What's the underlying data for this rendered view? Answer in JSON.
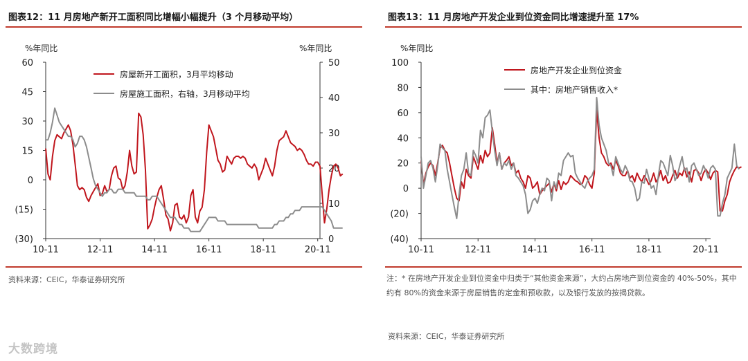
{
  "left": {
    "title": "图表12：11 月房地产新开工面积同比增幅小幅提升（3 个月移动平均）",
    "source": "资料来源：CEIC，华泰证券研究所",
    "chart_data": {
      "type": "line",
      "left_unit": "%年同比",
      "right_unit": "%年同比",
      "y_left_ticks": [
        "60",
        "45",
        "30",
        "15",
        "0",
        "(15)",
        "(30)"
      ],
      "y_left_values": [
        60,
        45,
        30,
        15,
        0,
        -15,
        -30
      ],
      "ylim_left": [
        -30,
        60
      ],
      "y_right_ticks": [
        "50",
        "40",
        "30",
        "20",
        "10",
        "0"
      ],
      "y_right_values": [
        50,
        40,
        30,
        20,
        10,
        0
      ],
      "ylim_right": [
        0,
        50
      ],
      "x_ticks": [
        "10-11",
        "12-11",
        "14-11",
        "16-11",
        "18-11",
        "20-11"
      ],
      "x_tick_positions": [
        0,
        24,
        48,
        72,
        96,
        120
      ],
      "xlim": [
        0,
        121
      ],
      "series": [
        {
          "name": "房屋新开工面积，3月平均移动",
          "color": "#c0161d",
          "axis": "left",
          "values": [
            16,
            3,
            0,
            12,
            20,
            23,
            22,
            21,
            24,
            26,
            28,
            25,
            18,
            8,
            -3,
            -5,
            -4,
            -5,
            -9,
            -11,
            -8,
            -6,
            -4,
            -2,
            -8,
            -7,
            -3,
            -6,
            -5,
            2,
            6,
            7,
            1,
            0,
            -5,
            -3,
            4,
            15,
            7,
            3,
            4,
            34,
            32,
            23,
            5,
            -25,
            -23,
            -20,
            -14,
            -9,
            -5,
            -3,
            -10,
            -18,
            -20,
            -26,
            -22,
            -13,
            -12,
            -19,
            -20,
            -18,
            -22,
            -19,
            -8,
            -5,
            -19,
            -22,
            -16,
            -14,
            -5,
            14,
            28,
            25,
            22,
            16,
            10,
            8,
            4,
            5,
            12,
            10,
            8,
            11,
            12,
            12,
            11,
            12,
            11,
            8,
            7,
            6,
            8,
            6,
            0,
            3,
            6,
            11,
            8,
            5,
            2,
            7,
            15,
            20,
            21,
            22,
            25,
            22,
            19,
            18,
            17,
            15,
            16,
            15,
            13,
            10,
            8,
            8,
            7,
            9,
            9,
            7,
            -8,
            -22,
            -15,
            -5,
            2,
            7,
            8,
            6,
            2,
            3
          ],
          "x_start": 0
        },
        {
          "name": "房屋施工面积，右轴，3月移动平均",
          "color": "#8c8c8c",
          "axis": "right",
          "values": [
            28,
            28,
            30,
            33,
            37,
            35,
            33,
            32,
            31,
            30,
            29,
            29,
            28,
            26,
            27,
            29,
            29,
            28,
            26,
            23,
            20,
            17,
            15,
            14,
            13,
            12,
            13,
            13,
            14,
            14,
            13,
            13,
            14,
            14,
            14,
            13,
            13,
            13,
            13,
            13,
            12,
            12,
            12,
            12,
            12,
            11,
            11,
            12,
            12,
            12,
            11,
            10,
            9,
            8,
            7,
            6,
            6,
            6,
            5,
            4,
            4,
            3,
            3,
            3,
            2,
            2,
            2,
            2,
            2,
            3,
            4,
            5,
            6,
            6,
            6,
            6,
            5,
            5,
            5,
            5,
            4,
            4,
            4,
            4,
            4,
            4,
            4,
            4,
            4,
            4,
            4,
            4,
            4,
            4,
            3,
            3,
            3,
            3,
            3,
            3,
            3,
            4,
            4,
            5,
            5,
            5,
            6,
            6,
            7,
            7,
            8,
            8,
            8,
            9,
            9,
            9,
            9,
            9,
            9,
            9,
            9,
            9,
            9,
            8,
            7,
            6,
            5,
            3,
            3,
            3,
            3,
            3
          ],
          "x_start": 0
        }
      ]
    }
  },
  "right": {
    "title": "图表13：11 月房地产开发企业到位资金同比增速提升至 17%",
    "note": "注：* 在房地产开发企业到位资金中归类于“其他资金来源”，大约占房地产到位资金的 40%-50%，其中约有 80%的资金来源于房屋销售的定金和预收款，以及银行发放的按揭贷款。",
    "source": "资料来源：CEIC，华泰证券研究所",
    "chart_data": {
      "type": "line",
      "left_unit": "%年同比",
      "y_left_ticks": [
        "100",
        "80",
        "60",
        "40",
        "20",
        "0",
        "(20)",
        "(40)"
      ],
      "y_left_values": [
        100,
        80,
        60,
        40,
        20,
        0,
        -20,
        -40
      ],
      "ylim_left": [
        -40,
        100
      ],
      "x_ticks": [
        "10-11",
        "12-11",
        "14-11",
        "16-11",
        "18-11",
        "20-11"
      ],
      "x_tick_positions": [
        0,
        24,
        48,
        72,
        96,
        120
      ],
      "xlim": [
        0,
        122
      ],
      "series": [
        {
          "name": "房地产开发企业到位资金",
          "color": "#c0161d",
          "values": [
            22,
            3,
            12,
            17,
            20,
            18,
            10,
            20,
            32,
            34,
            30,
            28,
            20,
            10,
            0,
            -8,
            -10,
            5,
            0,
            15,
            10,
            8,
            25,
            20,
            15,
            26,
            20,
            30,
            25,
            28,
            48,
            35,
            20,
            28,
            15,
            20,
            22,
            25,
            18,
            20,
            12,
            14,
            8,
            5,
            0,
            10,
            8,
            0,
            2,
            5,
            -5,
            -2,
            0,
            2,
            4,
            -3,
            4,
            -2,
            6,
            -1,
            5,
            3,
            5,
            10,
            8,
            6,
            5,
            3,
            4,
            10,
            8,
            3,
            0,
            12,
            62,
            40,
            28,
            25,
            20,
            18,
            20,
            15,
            22,
            18,
            12,
            10,
            10,
            14,
            8,
            10,
            5,
            12,
            8,
            5,
            10,
            7,
            3,
            6,
            12,
            5,
            8,
            14,
            6,
            10,
            4,
            5,
            10,
            14,
            8,
            12,
            10,
            16,
            9,
            13,
            5,
            14,
            15,
            12,
            6,
            12,
            15,
            12,
            7,
            12,
            14,
            13,
            -18,
            -18,
            -10,
            -5,
            5,
            10,
            14,
            17,
            16,
            17
          ],
          "x_start": 0
        },
        {
          "name": "其中：房地产销售收入*",
          "color": "#8c8c8c",
          "values": [
            25,
            0,
            10,
            20,
            22,
            16,
            5,
            18,
            35,
            32,
            30,
            15,
            5,
            -5,
            -15,
            -24,
            -5,
            10,
            15,
            28,
            12,
            10,
            30,
            26,
            20,
            46,
            40,
            56,
            58,
            62,
            45,
            30,
            18,
            28,
            15,
            20,
            18,
            22,
            15,
            20,
            10,
            8,
            5,
            2,
            -5,
            -20,
            -17,
            -10,
            -8,
            -12,
            -5,
            0,
            -2,
            8,
            6,
            -10,
            5,
            0,
            12,
            10,
            22,
            25,
            28,
            25,
            26,
            12,
            8,
            5,
            2,
            0,
            5,
            8,
            10,
            15,
            72,
            50,
            40,
            35,
            30,
            20,
            18,
            10,
            25,
            20,
            15,
            12,
            18,
            14,
            6,
            5,
            0,
            -10,
            -8,
            5,
            4,
            15,
            8,
            0,
            2,
            -5,
            10,
            22,
            20,
            15,
            10,
            26,
            18,
            6,
            10,
            18,
            25,
            14,
            16,
            5,
            18,
            20,
            15,
            10,
            12,
            18,
            14,
            8,
            16,
            18,
            15,
            -22,
            -22,
            -12,
            -5,
            8,
            12,
            16,
            35,
            18,
            15
          ],
          "x_start": 0
        }
      ]
    }
  },
  "watermark": "大数跨境"
}
